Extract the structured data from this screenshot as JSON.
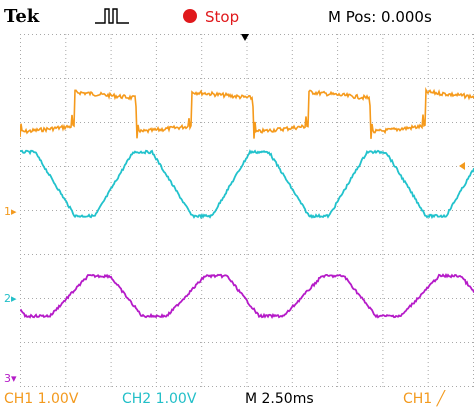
{
  "header": {
    "brand": "Tek",
    "trigger_icon": "pulse-icon",
    "run_state": "Stop",
    "run_state_icon": "stop-dot-icon",
    "m_pos": "M Pos: 0.000s"
  },
  "screen": {
    "channel_markers": [
      {
        "label": "1",
        "color": "#f39a1e"
      },
      {
        "label": "2",
        "color": "#22bfc8"
      },
      {
        "label": "3",
        "color": "#b51bc8"
      }
    ],
    "grid_color": "#a8a8a8",
    "trace_colors": {
      "ch1": "#f59a1c",
      "ch2": "#22c2cc",
      "ch3": "#b51bc8"
    }
  },
  "status": {
    "ch1": "CH1  1.00V",
    "ch2": "CH2  1.00V",
    "timebase": "M 2.50ms",
    "trigger": "CH1 ╱"
  }
}
